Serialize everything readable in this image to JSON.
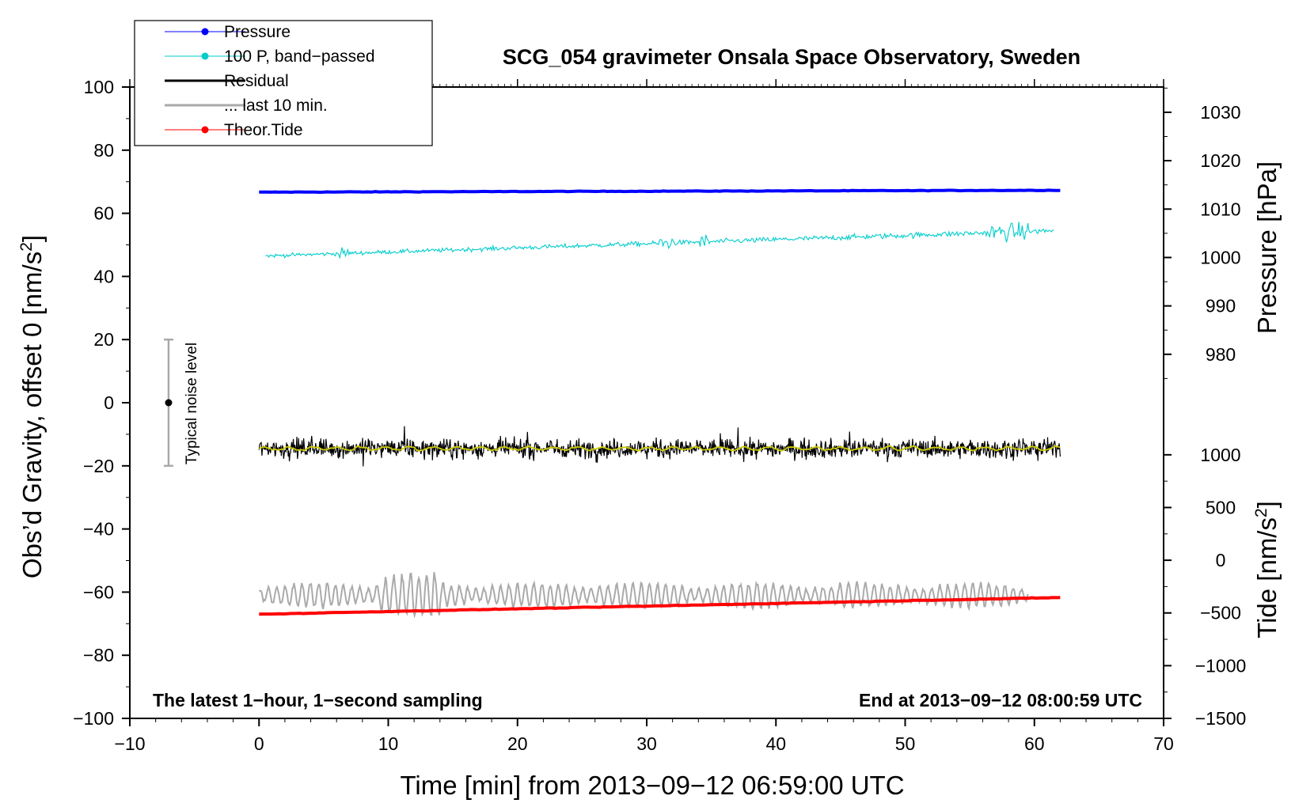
{
  "chart_data": {
    "type": "line",
    "title": "SCG_054 gravimeter Onsala Space Observatory, Sweden",
    "xlabel": "Time [min] from 2013−09−12 06:59:00 UTC",
    "ylabel": "Obs’d Gravity, offset 0 [nm/s",
    "ylabel_sup": "2",
    "ylabel_end": "]",
    "xlim": [
      -10,
      70
    ],
    "ylim": [
      -100,
      100
    ],
    "x_ticks": [
      -10,
      0,
      10,
      20,
      30,
      40,
      50,
      60,
      70
    ],
    "x_tick_labels": [
      "−10",
      "0",
      "10",
      "20",
      "30",
      "40",
      "50",
      "60",
      "70"
    ],
    "y_ticks": [
      -100,
      -80,
      -60,
      -40,
      -20,
      0,
      20,
      40,
      60,
      80,
      100
    ],
    "y_tick_labels": [
      "−100",
      "−80",
      "−60",
      "−40",
      "−20",
      "0",
      "20",
      "40",
      "60",
      "80",
      "100"
    ],
    "right_axis_pressure": {
      "label": "Pressure [hPa]",
      "ticks": [
        980,
        990,
        1000,
        1010,
        1020,
        1030
      ],
      "tick_labels": [
        "980",
        "990",
        "1000",
        "1010",
        "1020",
        "1030"
      ],
      "map": {
        "value_a": 1000,
        "left_a": 46,
        "value_b": 1030,
        "left_b": 92
      }
    },
    "right_axis_tide": {
      "label": "Tide [nm/s",
      "label_sup": "2",
      "label_end": "]",
      "ticks": [
        -1500,
        -1000,
        -500,
        0,
        500,
        1000
      ],
      "tick_labels": [
        "−1500",
        "−1000",
        "−500",
        "0",
        "500",
        "1000"
      ],
      "map": {
        "value_a": -1500,
        "left_a": -100,
        "value_b": 1000,
        "left_b": -16.5
      }
    },
    "series": [
      {
        "name": "Pressure",
        "color": "#0000ff",
        "x_range": [
          0,
          62
        ],
        "y_start": 66.7,
        "y_end": 67.3,
        "style": "thick-line",
        "y_units": "left-axis"
      },
      {
        "name": "100 P, band−passed",
        "color": "#00cccc",
        "x_range": [
          0.5,
          61.5
        ],
        "y_start": 46.5,
        "y_end": 54.5,
        "noise": 0.9,
        "style": "thin-noisy",
        "y_units": "left-axis"
      },
      {
        "name": "Residual",
        "color": "#000000",
        "x_range": [
          0,
          62
        ],
        "y_center": -14.5,
        "noise": 2.8,
        "style": "noisy",
        "y_units": "left-axis"
      },
      {
        "name": "... last 10 min.",
        "color": "#aaaaaa",
        "x_range": [
          0,
          59.5
        ],
        "y_center": -61,
        "noise": 2.5,
        "style": "oscillating",
        "y_units": "left-axis"
      },
      {
        "name": "Theor.Tide",
        "color": "#ff0000",
        "x_range": [
          0,
          62
        ],
        "y_start": -67,
        "y_end": -61.7,
        "style": "thick-line",
        "y_units": "left-axis"
      }
    ],
    "smoothed_residual_color": "#cccc00",
    "noise_bar": {
      "label": "Typical noise level",
      "x": -7,
      "y_center": 0,
      "y_min": -20,
      "y_max": 20
    },
    "notes": {
      "bottom_left": "The latest 1−hour, 1−second sampling",
      "bottom_right": "End at 2013−09−12 08:00:59 UTC"
    },
    "legend_position": "top-left"
  }
}
